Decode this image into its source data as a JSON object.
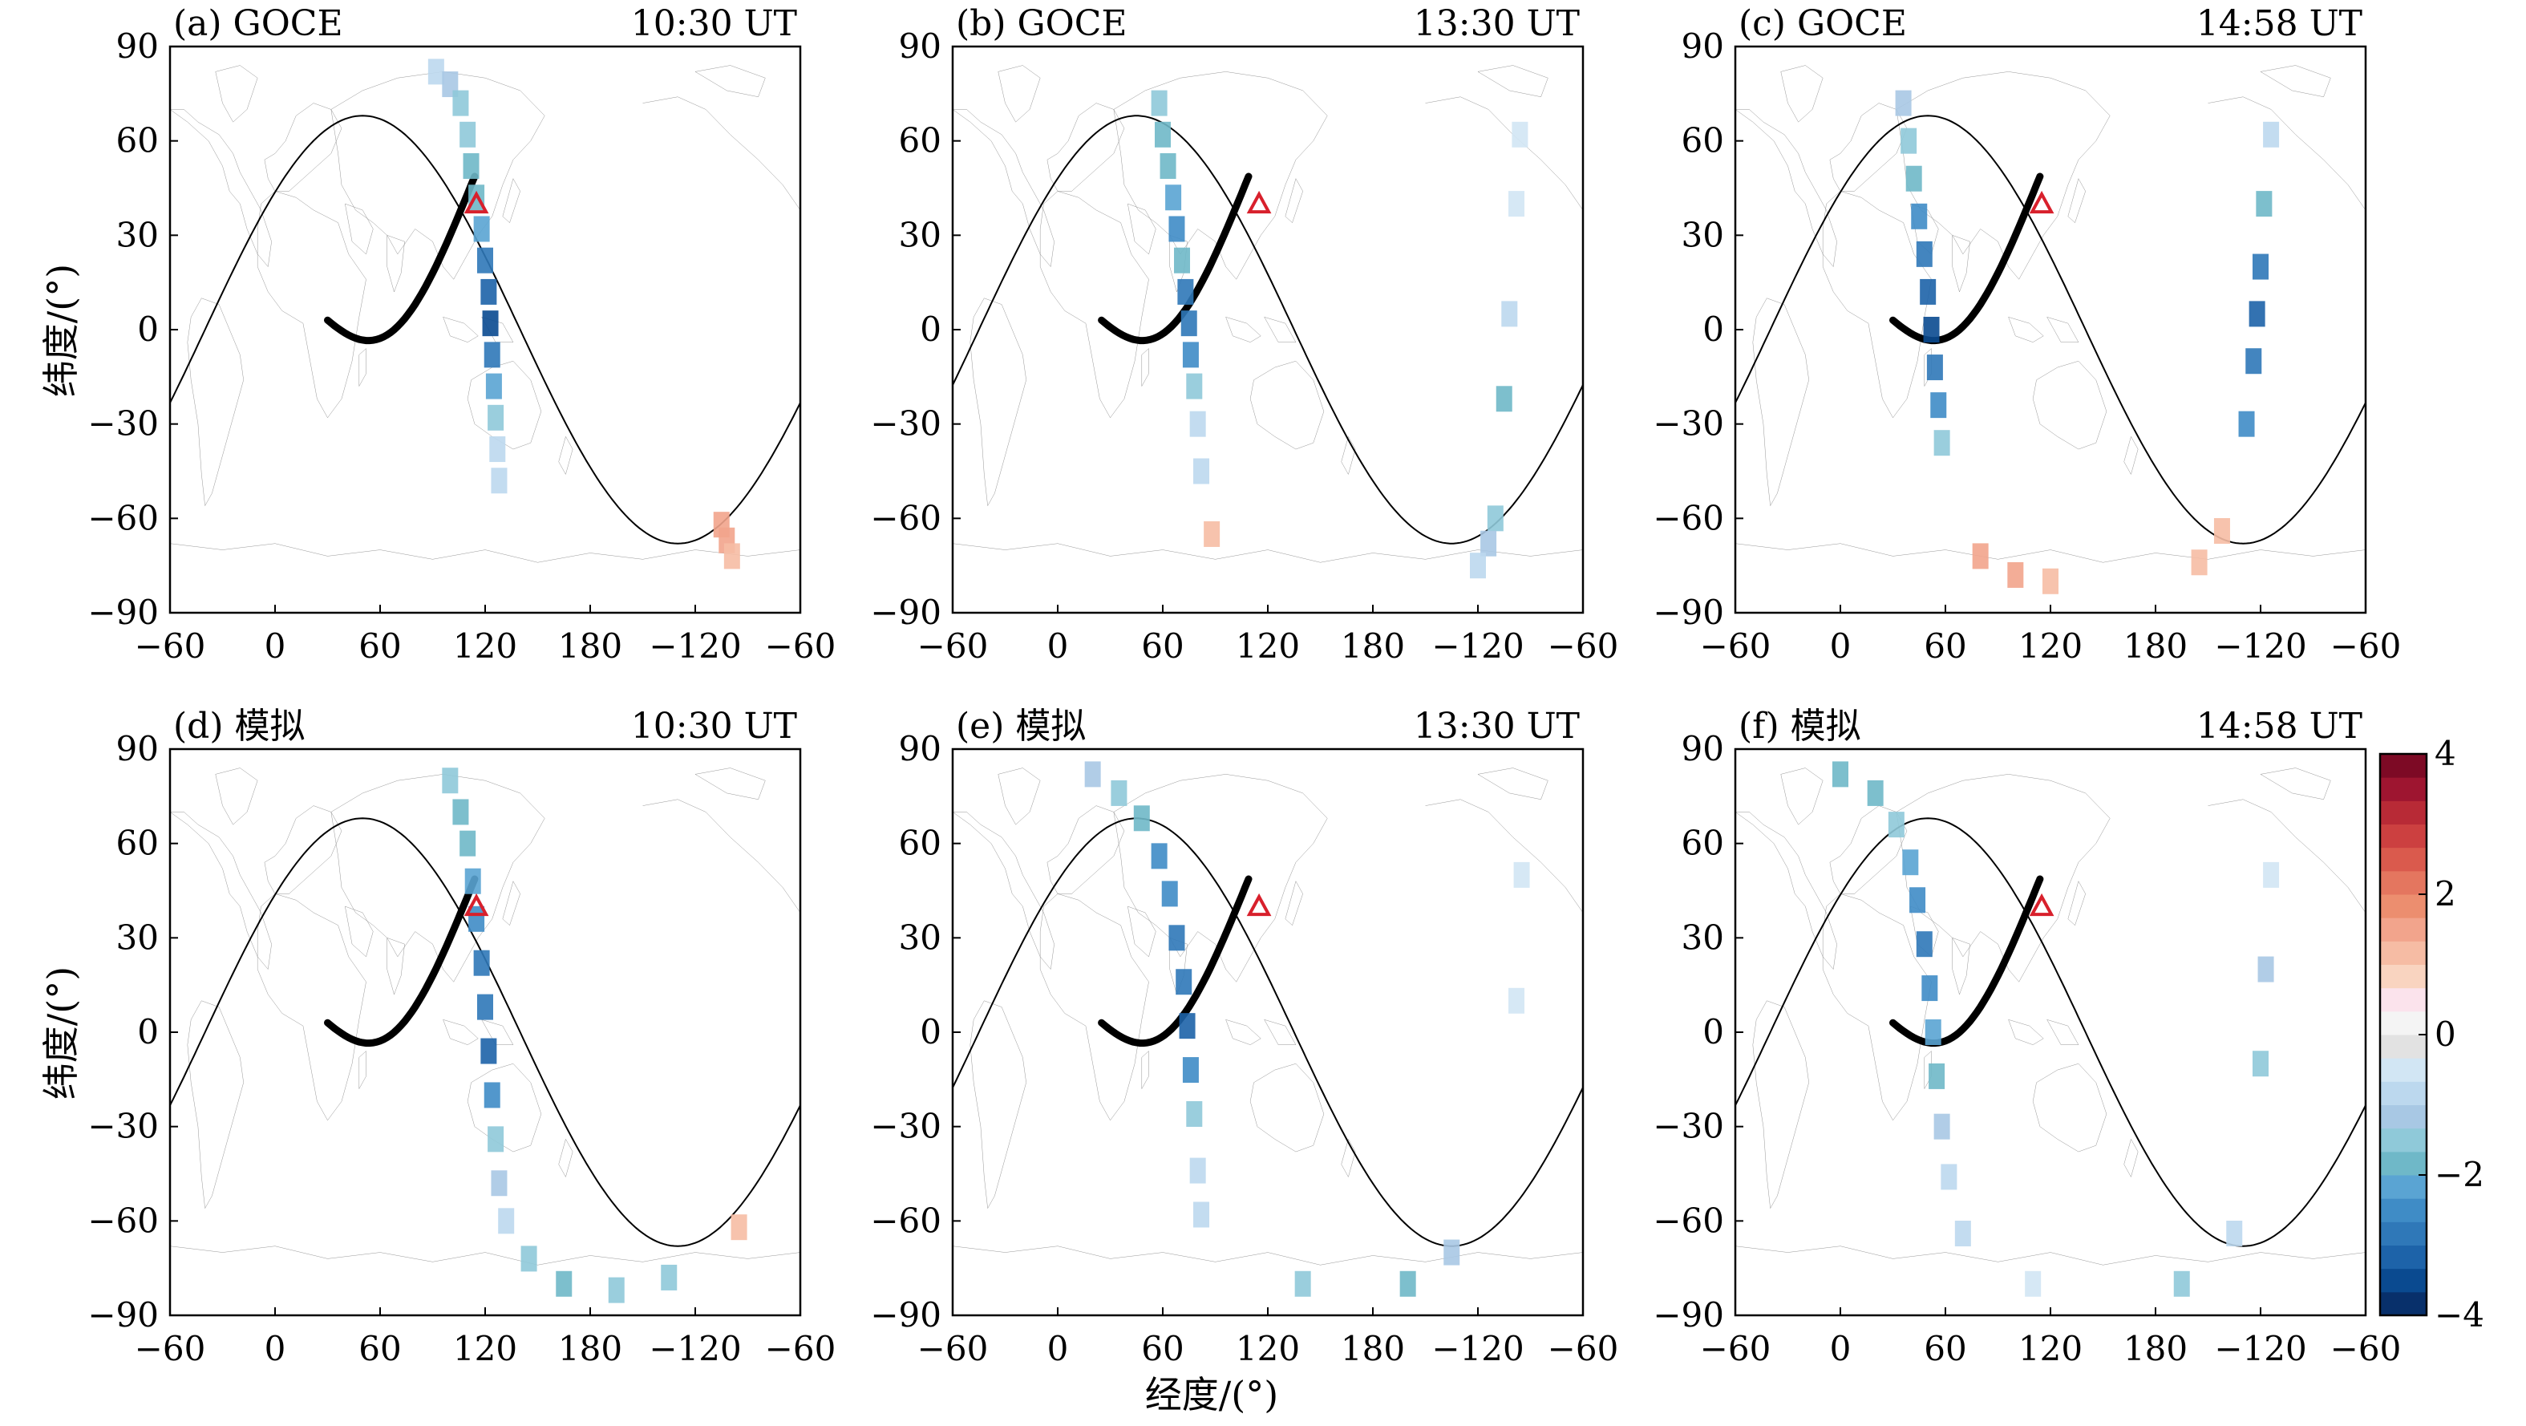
{
  "figure": {
    "x_axis_label": "经度/(°)",
    "y_axis_label": "纬度/(°)",
    "x_tick_labels": [
      "−60",
      "0",
      "60",
      "120",
      "180",
      "−120",
      "−60"
    ],
    "y_tick_labels": [
      "90",
      "60",
      "30",
      "0",
      "−30",
      "−60",
      "−90"
    ],
    "colorbar": {
      "min": -4,
      "max": 4,
      "tick_labels": [
        "4",
        "2",
        "0",
        "−2",
        "−4"
      ],
      "tick_values": [
        4,
        2,
        0,
        -2,
        -4
      ],
      "colors": [
        "#08306b",
        "#0a4a90",
        "#1d63a9",
        "#2f78b8",
        "#3f8cc6",
        "#5aa4d3",
        "#6fb8c8",
        "#8fc9d9",
        "#a8c8e4",
        "#bcd8ee",
        "#d2e6f4",
        "#e2e2e2",
        "#f4f4f4",
        "#fbe3ec",
        "#f9d4c0",
        "#f6bca4",
        "#f2a48c",
        "#ec8e6f",
        "#e4765f",
        "#da5a4d",
        "#cc4040",
        "#b82a36",
        "#9e1530",
        "#7d0a25"
      ]
    },
    "marker": {
      "name": "station-triangle",
      "lon": 115,
      "lat": 40,
      "color": "#d8202c"
    }
  },
  "chart_data": [
    {
      "type": "scatter",
      "panel": "a",
      "title_left": "(a) GOCE",
      "title_right": "10:30 UT",
      "xlabel": "",
      "ylabel": "纬度/(°)",
      "xlim": [
        -60,
        300
      ],
      "ylim": [
        -90,
        90
      ],
      "track_center_lon": 115,
      "terminator_lon0": 30,
      "equator_lon0": 30,
      "points": [
        [
          92,
          82,
          -1.0
        ],
        [
          100,
          78,
          -1.2
        ],
        [
          106,
          72,
          -1.4
        ],
        [
          110,
          62,
          -1.6
        ],
        [
          112,
          52,
          -1.8
        ],
        [
          115,
          42,
          -2.0
        ],
        [
          118,
          32,
          -2.3
        ],
        [
          120,
          22,
          -2.8
        ],
        [
          122,
          12,
          -3.2
        ],
        [
          123,
          2,
          -3.4
        ],
        [
          124,
          -8,
          -3.0
        ],
        [
          125,
          -18,
          -2.2
        ],
        [
          126,
          -28,
          -1.4
        ],
        [
          127,
          -38,
          -1.0
        ],
        [
          128,
          -48,
          -0.8
        ],
        [
          255,
          -62,
          1.4
        ],
        [
          258,
          -67,
          1.6
        ],
        [
          261,
          -72,
          1.2
        ]
      ]
    },
    {
      "type": "scatter",
      "panel": "b",
      "title_left": "(b) GOCE",
      "title_right": "13:30 UT",
      "xlabel": "",
      "ylabel": "",
      "xlim": [
        -60,
        300
      ],
      "ylim": [
        -90,
        90
      ],
      "track_center_lon": 65,
      "terminator_lon0": 25,
      "equator_lon0": 25,
      "points": [
        [
          58,
          72,
          -1.6
        ],
        [
          60,
          62,
          -1.8
        ],
        [
          63,
          52,
          -2.0
        ],
        [
          66,
          42,
          -2.2
        ],
        [
          68,
          32,
          -2.4
        ],
        [
          71,
          22,
          -2.0
        ],
        [
          73,
          12,
          -2.8
        ],
        [
          75,
          2,
          -3.0
        ],
        [
          76,
          -8,
          -2.6
        ],
        [
          78,
          -18,
          -1.6
        ],
        [
          80,
          -30,
          -1.0
        ],
        [
          82,
          -45,
          -0.8
        ],
        [
          88,
          -65,
          1.0
        ],
        [
          250,
          -60,
          -1.6
        ],
        [
          246,
          -68,
          -1.2
        ],
        [
          240,
          -75,
          -0.8
        ],
        [
          255,
          -22,
          -1.9
        ],
        [
          258,
          5,
          -1.0
        ],
        [
          262,
          40,
          -0.6
        ],
        [
          264,
          62,
          -0.5
        ]
      ]
    },
    {
      "type": "scatter",
      "panel": "c",
      "title_left": "(c) GOCE",
      "title_right": "14:58 UT",
      "xlabel": "",
      "ylabel": "",
      "xlim": [
        -60,
        300
      ],
      "ylim": [
        -90,
        90
      ],
      "track_center_lon": 45,
      "terminator_lon0": 30,
      "equator_lon0": 30,
      "points": [
        [
          36,
          72,
          -1.2
        ],
        [
          39,
          60,
          -1.6
        ],
        [
          42,
          48,
          -2.0
        ],
        [
          45,
          36,
          -2.4
        ],
        [
          48,
          24,
          -2.8
        ],
        [
          50,
          12,
          -3.2
        ],
        [
          52,
          0,
          -3.4
        ],
        [
          54,
          -12,
          -3.0
        ],
        [
          56,
          -24,
          -2.6
        ],
        [
          58,
          -36,
          -1.4
        ],
        [
          80,
          -72,
          1.6
        ],
        [
          100,
          -78,
          1.4
        ],
        [
          120,
          -80,
          1.0
        ],
        [
          205,
          -74,
          1.2
        ],
        [
          218,
          -64,
          1.0
        ],
        [
          232,
          -30,
          -2.4
        ],
        [
          236,
          -10,
          -3.0
        ],
        [
          238,
          5,
          -3.2
        ],
        [
          240,
          20,
          -2.8
        ],
        [
          242,
          40,
          -2.0
        ],
        [
          246,
          62,
          -0.8
        ]
      ]
    },
    {
      "type": "scatter",
      "panel": "d",
      "title_left": "(d) 模拟",
      "title_right": "10:30 UT",
      "xlabel": "",
      "ylabel": "纬度/(°)",
      "xlim": [
        -60,
        300
      ],
      "ylim": [
        -90,
        90
      ],
      "track_center_lon": 115,
      "terminator_lon0": 30,
      "equator_lon0": 30,
      "points": [
        [
          100,
          80,
          -1.4
        ],
        [
          106,
          70,
          -1.8
        ],
        [
          110,
          60,
          -2.0
        ],
        [
          113,
          48,
          -2.3
        ],
        [
          115,
          36,
          -2.6
        ],
        [
          118,
          22,
          -2.8
        ],
        [
          120,
          8,
          -3.0
        ],
        [
          122,
          -6,
          -3.2
        ],
        [
          124,
          -20,
          -2.6
        ],
        [
          126,
          -34,
          -1.6
        ],
        [
          128,
          -48,
          -1.2
        ],
        [
          132,
          -60,
          -1.0
        ],
        [
          145,
          -72,
          -1.4
        ],
        [
          165,
          -80,
          -1.8
        ],
        [
          195,
          -82,
          -1.6
        ],
        [
          225,
          -78,
          -1.4
        ],
        [
          265,
          -62,
          1.2
        ]
      ]
    },
    {
      "type": "scatter",
      "panel": "e",
      "title_left": "(e) 模拟",
      "title_right": "13:30 UT",
      "xlabel": "",
      "ylabel": "",
      "xlim": [
        -60,
        300
      ],
      "ylim": [
        -90,
        90
      ],
      "track_center_lon": 65,
      "terminator_lon0": 25,
      "equator_lon0": 25,
      "points": [
        [
          20,
          82,
          -1.2
        ],
        [
          35,
          76,
          -1.6
        ],
        [
          48,
          68,
          -2.0
        ],
        [
          58,
          56,
          -2.4
        ],
        [
          64,
          44,
          -2.6
        ],
        [
          68,
          30,
          -2.8
        ],
        [
          72,
          16,
          -3.0
        ],
        [
          74,
          2,
          -3.2
        ],
        [
          76,
          -12,
          -2.4
        ],
        [
          78,
          -26,
          -1.4
        ],
        [
          80,
          -44,
          -1.0
        ],
        [
          82,
          -58,
          -0.8
        ],
        [
          140,
          -80,
          -1.4
        ],
        [
          200,
          -80,
          -1.8
        ],
        [
          225,
          -70,
          -1.2
        ],
        [
          262,
          10,
          -0.6
        ],
        [
          265,
          50,
          -0.5
        ]
      ]
    },
    {
      "type": "scatter",
      "panel": "f",
      "title_left": "(f) 模拟",
      "title_right": "14:58 UT",
      "xlabel": "",
      "ylabel": "",
      "xlim": [
        -60,
        300
      ],
      "ylim": [
        -90,
        90
      ],
      "track_center_lon": 45,
      "terminator_lon0": 30,
      "equator_lon0": 30,
      "points": [
        [
          0,
          82,
          -1.8
        ],
        [
          20,
          76,
          -1.8
        ],
        [
          32,
          66,
          -1.6
        ],
        [
          40,
          54,
          -2.2
        ],
        [
          44,
          42,
          -2.6
        ],
        [
          48,
          28,
          -3.0
        ],
        [
          51,
          14,
          -2.6
        ],
        [
          53,
          0,
          -2.2
        ],
        [
          55,
          -14,
          -1.8
        ],
        [
          58,
          -30,
          -1.2
        ],
        [
          62,
          -46,
          -1.0
        ],
        [
          70,
          -64,
          -0.8
        ],
        [
          110,
          -80,
          -0.6
        ],
        [
          195,
          -80,
          -1.4
        ],
        [
          225,
          -64,
          -0.8
        ],
        [
          240,
          -10,
          -1.6
        ],
        [
          243,
          20,
          -1.2
        ],
        [
          246,
          50,
          -0.6
        ]
      ]
    }
  ]
}
